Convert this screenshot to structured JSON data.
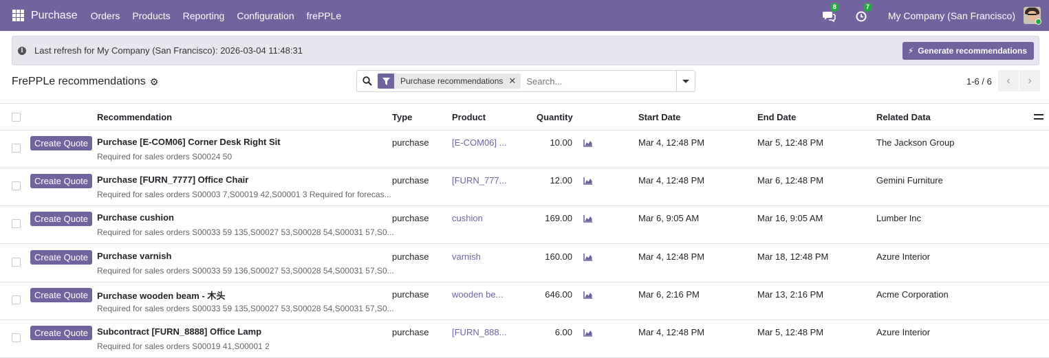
{
  "navbar": {
    "app_name": "Purchase",
    "menu": [
      "Orders",
      "Products",
      "Reporting",
      "Configuration",
      "frePPLe"
    ],
    "messages_count": "8",
    "activities_count": "7",
    "company": "My Company (San Francisco)",
    "accent_color": "#71639e"
  },
  "alert": {
    "text": "Last refresh for My Company (San Francisco): 2026-03-04 11:48:31",
    "button_label": "Generate recommendations"
  },
  "control": {
    "title": "FrePPLe recommendations",
    "facet_label": "Purchase recommendations",
    "search_placeholder": "Search...",
    "pager": "1-6 / 6"
  },
  "table": {
    "columns": [
      "Recommendation",
      "Type",
      "Product",
      "Quantity",
      "Start Date",
      "End Date",
      "Related Data"
    ],
    "button_label": "Create Quote",
    "rows": [
      {
        "title": "Purchase [E-COM06] Corner Desk Right Sit",
        "subtitle": "Required for sales orders S00024 50",
        "type": "purchase",
        "product": "[E-COM06] ...",
        "quantity": "10.00",
        "start": "Mar 4, 12:48 PM",
        "end": "Mar 5, 12:48 PM",
        "related": "The Jackson Group"
      },
      {
        "title": "Purchase [FURN_7777] Office Chair",
        "subtitle": "Required for sales orders S00003 7,S00019 42,S00001 3 Required for forecas...",
        "type": "purchase",
        "product": "[FURN_777...",
        "quantity": "12.00",
        "start": "Mar 4, 12:48 PM",
        "end": "Mar 6, 12:48 PM",
        "related": "Gemini Furniture"
      },
      {
        "title": "Purchase cushion",
        "subtitle": "Required for sales orders S00033 59 135,S00027 53,S00028 54,S00031 57,S0...",
        "type": "purchase",
        "product": "cushion",
        "quantity": "169.00",
        "start": "Mar 6, 9:05 AM",
        "end": "Mar 16, 9:05 AM",
        "related": "Lumber Inc"
      },
      {
        "title": "Purchase varnish",
        "subtitle": "Required for sales orders S00033 59 136,S00027 53,S00028 54,S00031 57,S0...",
        "type": "purchase",
        "product": "varnish",
        "quantity": "160.00",
        "start": "Mar 4, 12:48 PM",
        "end": "Mar 18, 12:48 PM",
        "related": "Azure Interior"
      },
      {
        "title": "Purchase wooden beam - 木头",
        "subtitle": "Required for sales orders S00033 59 135,S00027 53,S00028 54,S00031 57,S0...",
        "type": "purchase",
        "product": "wooden be...",
        "quantity": "646.00",
        "start": "Mar 6, 2:16 PM",
        "end": "Mar 13, 2:16 PM",
        "related": "Acme Corporation"
      },
      {
        "title": "Subcontract [FURN_8888] Office Lamp",
        "subtitle": "Required for sales orders S00019 41,S00001 2",
        "type": "purchase",
        "product": "[FURN_888...",
        "quantity": "6.00",
        "start": "Mar 4, 12:48 PM",
        "end": "Mar 5, 12:48 PM",
        "related": "Azure Interior"
      }
    ]
  }
}
